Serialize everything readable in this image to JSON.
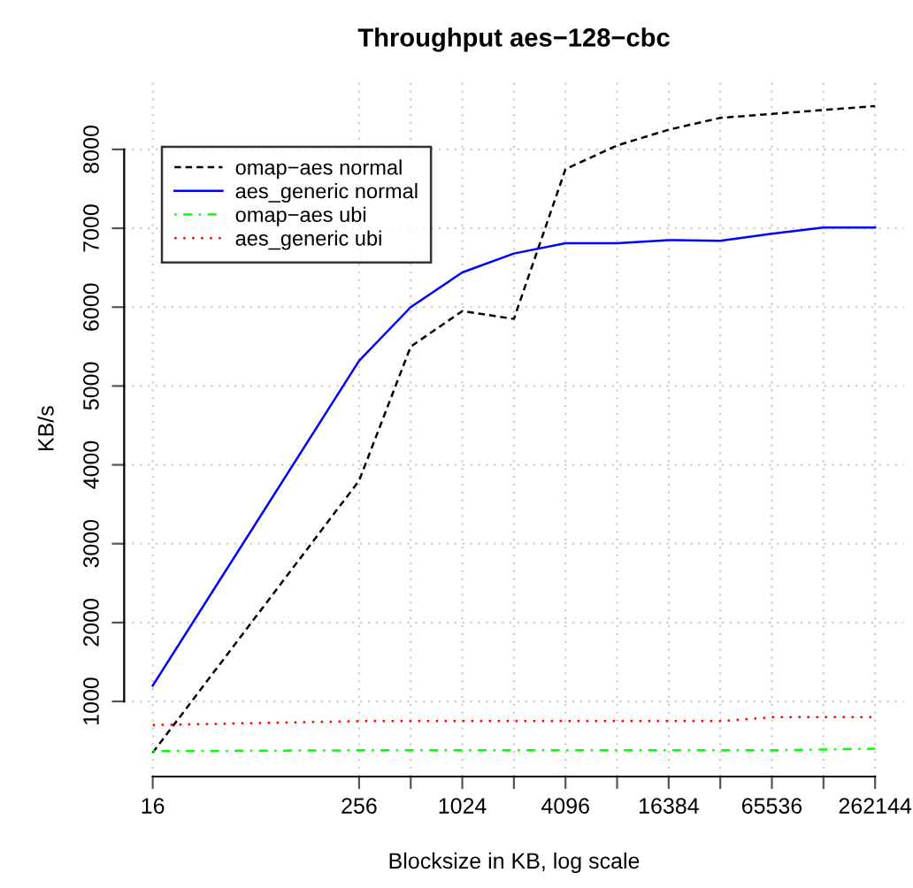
{
  "chart_data": {
    "type": "line",
    "title": "Throughput aes−128−cbc",
    "xlabel": "Blocksize in KB, log scale",
    "ylabel": "KB/s",
    "x": [
      16,
      256,
      512,
      1024,
      2048,
      4096,
      8192,
      16384,
      32768,
      65536,
      131072,
      262144
    ],
    "series": [
      {
        "name": "omap−aes normal",
        "color": "#000000",
        "line_style": "dashed",
        "values": [
          350,
          3800,
          5500,
          5950,
          5850,
          7750,
          8050,
          8250,
          8400,
          8450,
          8500,
          8550
        ]
      },
      {
        "name": "aes_generic normal",
        "color": "#0000ff",
        "line_style": "solid",
        "values": [
          1200,
          5320,
          6000,
          6440,
          6680,
          6810,
          6810,
          6850,
          6840,
          6930,
          7010,
          7010
        ]
      },
      {
        "name": "omap−aes ubi",
        "color": "#00ff00",
        "line_style": "dashdot",
        "values": [
          370,
          380,
          380,
          380,
          380,
          380,
          380,
          380,
          380,
          380,
          390,
          400
        ]
      },
      {
        "name": "aes_generic ubi",
        "color": "#ff0000",
        "line_style": "dotted",
        "values": [
          700,
          750,
          750,
          750,
          750,
          750,
          750,
          750,
          750,
          800,
          800,
          800
        ]
      }
    ],
    "log": "x",
    "xlim": [
      10.9,
      386000
    ],
    "ylim": [
      47,
      8870
    ],
    "xticks": [
      16,
      256,
      {
        "value": 512,
        "label": null
      },
      1024,
      {
        "value": 2048,
        "label": null
      },
      4096,
      {
        "value": 8192,
        "label": null
      },
      16384,
      {
        "value": 32768,
        "label": null
      },
      65536,
      {
        "value": 131072,
        "label": null
      },
      262144
    ],
    "yticks": [
      1000,
      2000,
      3000,
      4000,
      5000,
      6000,
      7000,
      8000
    ],
    "grid": true,
    "legend": "top left",
    "marker": "none"
  }
}
